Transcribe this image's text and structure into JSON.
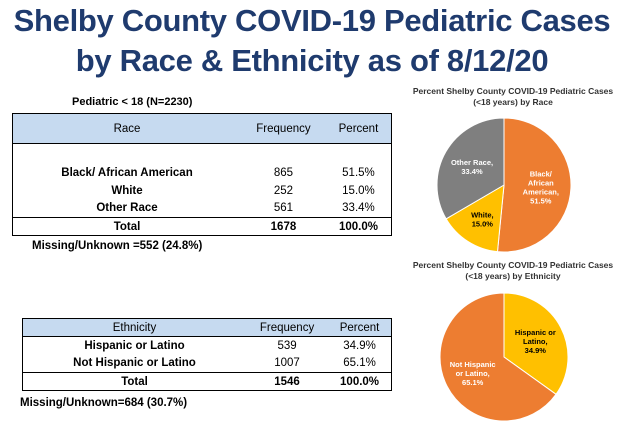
{
  "title_line1": "Shelby County COVID-19 Pediatric Cases",
  "title_line2": "by Race & Ethnicity as of 8/12/20",
  "pediatric_note": "Pediatric < 18 (N=2230)",
  "race_table": {
    "headers": [
      "Race",
      "Frequency",
      "Percent"
    ],
    "rows": [
      {
        "name": "Black/ African American",
        "frequency": "865",
        "percent": "51.5%"
      },
      {
        "name": "White",
        "frequency": "252",
        "percent": "15.0%"
      },
      {
        "name": "Other Race",
        "frequency": "561",
        "percent": "33.4%"
      }
    ],
    "total": {
      "name": "Total",
      "frequency": "1678",
      "percent": "100.0%"
    },
    "missing": "Missing/Unknown =552 (24.8%)"
  },
  "ethnicity_table": {
    "headers": [
      "Ethnicity",
      "Frequency",
      "Percent"
    ],
    "rows": [
      {
        "name": "Hispanic or Latino",
        "frequency": "539",
        "percent": "34.9%"
      },
      {
        "name": "Not Hispanic or Latino",
        "frequency": "1007",
        "percent": "65.1%"
      }
    ],
    "total": {
      "name": "Total",
      "frequency": "1546",
      "percent": "100.0%"
    },
    "missing": "Missing/Unknown=684 (30.7%)"
  },
  "chart_data": [
    {
      "type": "pie",
      "title_line1": "Percent Shelby County COVID-19 Pediatric Cases",
      "title_line2": "(<18 years) by Race",
      "slices": [
        {
          "label": [
            "Black/",
            "African",
            "American,",
            "51.5%"
          ],
          "value": 51.5,
          "color": "#ed7d31"
        },
        {
          "label": [
            "White,",
            "15.0%"
          ],
          "value": 15.0,
          "color": "#ffc000"
        },
        {
          "label": [
            "Other Race,",
            "33.4%"
          ],
          "value": 33.4,
          "color": "#7f7f7f"
        }
      ]
    },
    {
      "type": "pie",
      "title_line1": "Percent Shelby County COVID-19 Pediatric Cases",
      "title_line2": "(<18 years)  by Ethnicity",
      "slices": [
        {
          "label": [
            "Hispanic or",
            "Latino,",
            "34.9%"
          ],
          "value": 34.9,
          "color": "#ffc000"
        },
        {
          "label": [
            "Not Hispanic",
            "or Latino,",
            "65.1%"
          ],
          "value": 65.1,
          "color": "#ed7d31"
        }
      ]
    }
  ]
}
